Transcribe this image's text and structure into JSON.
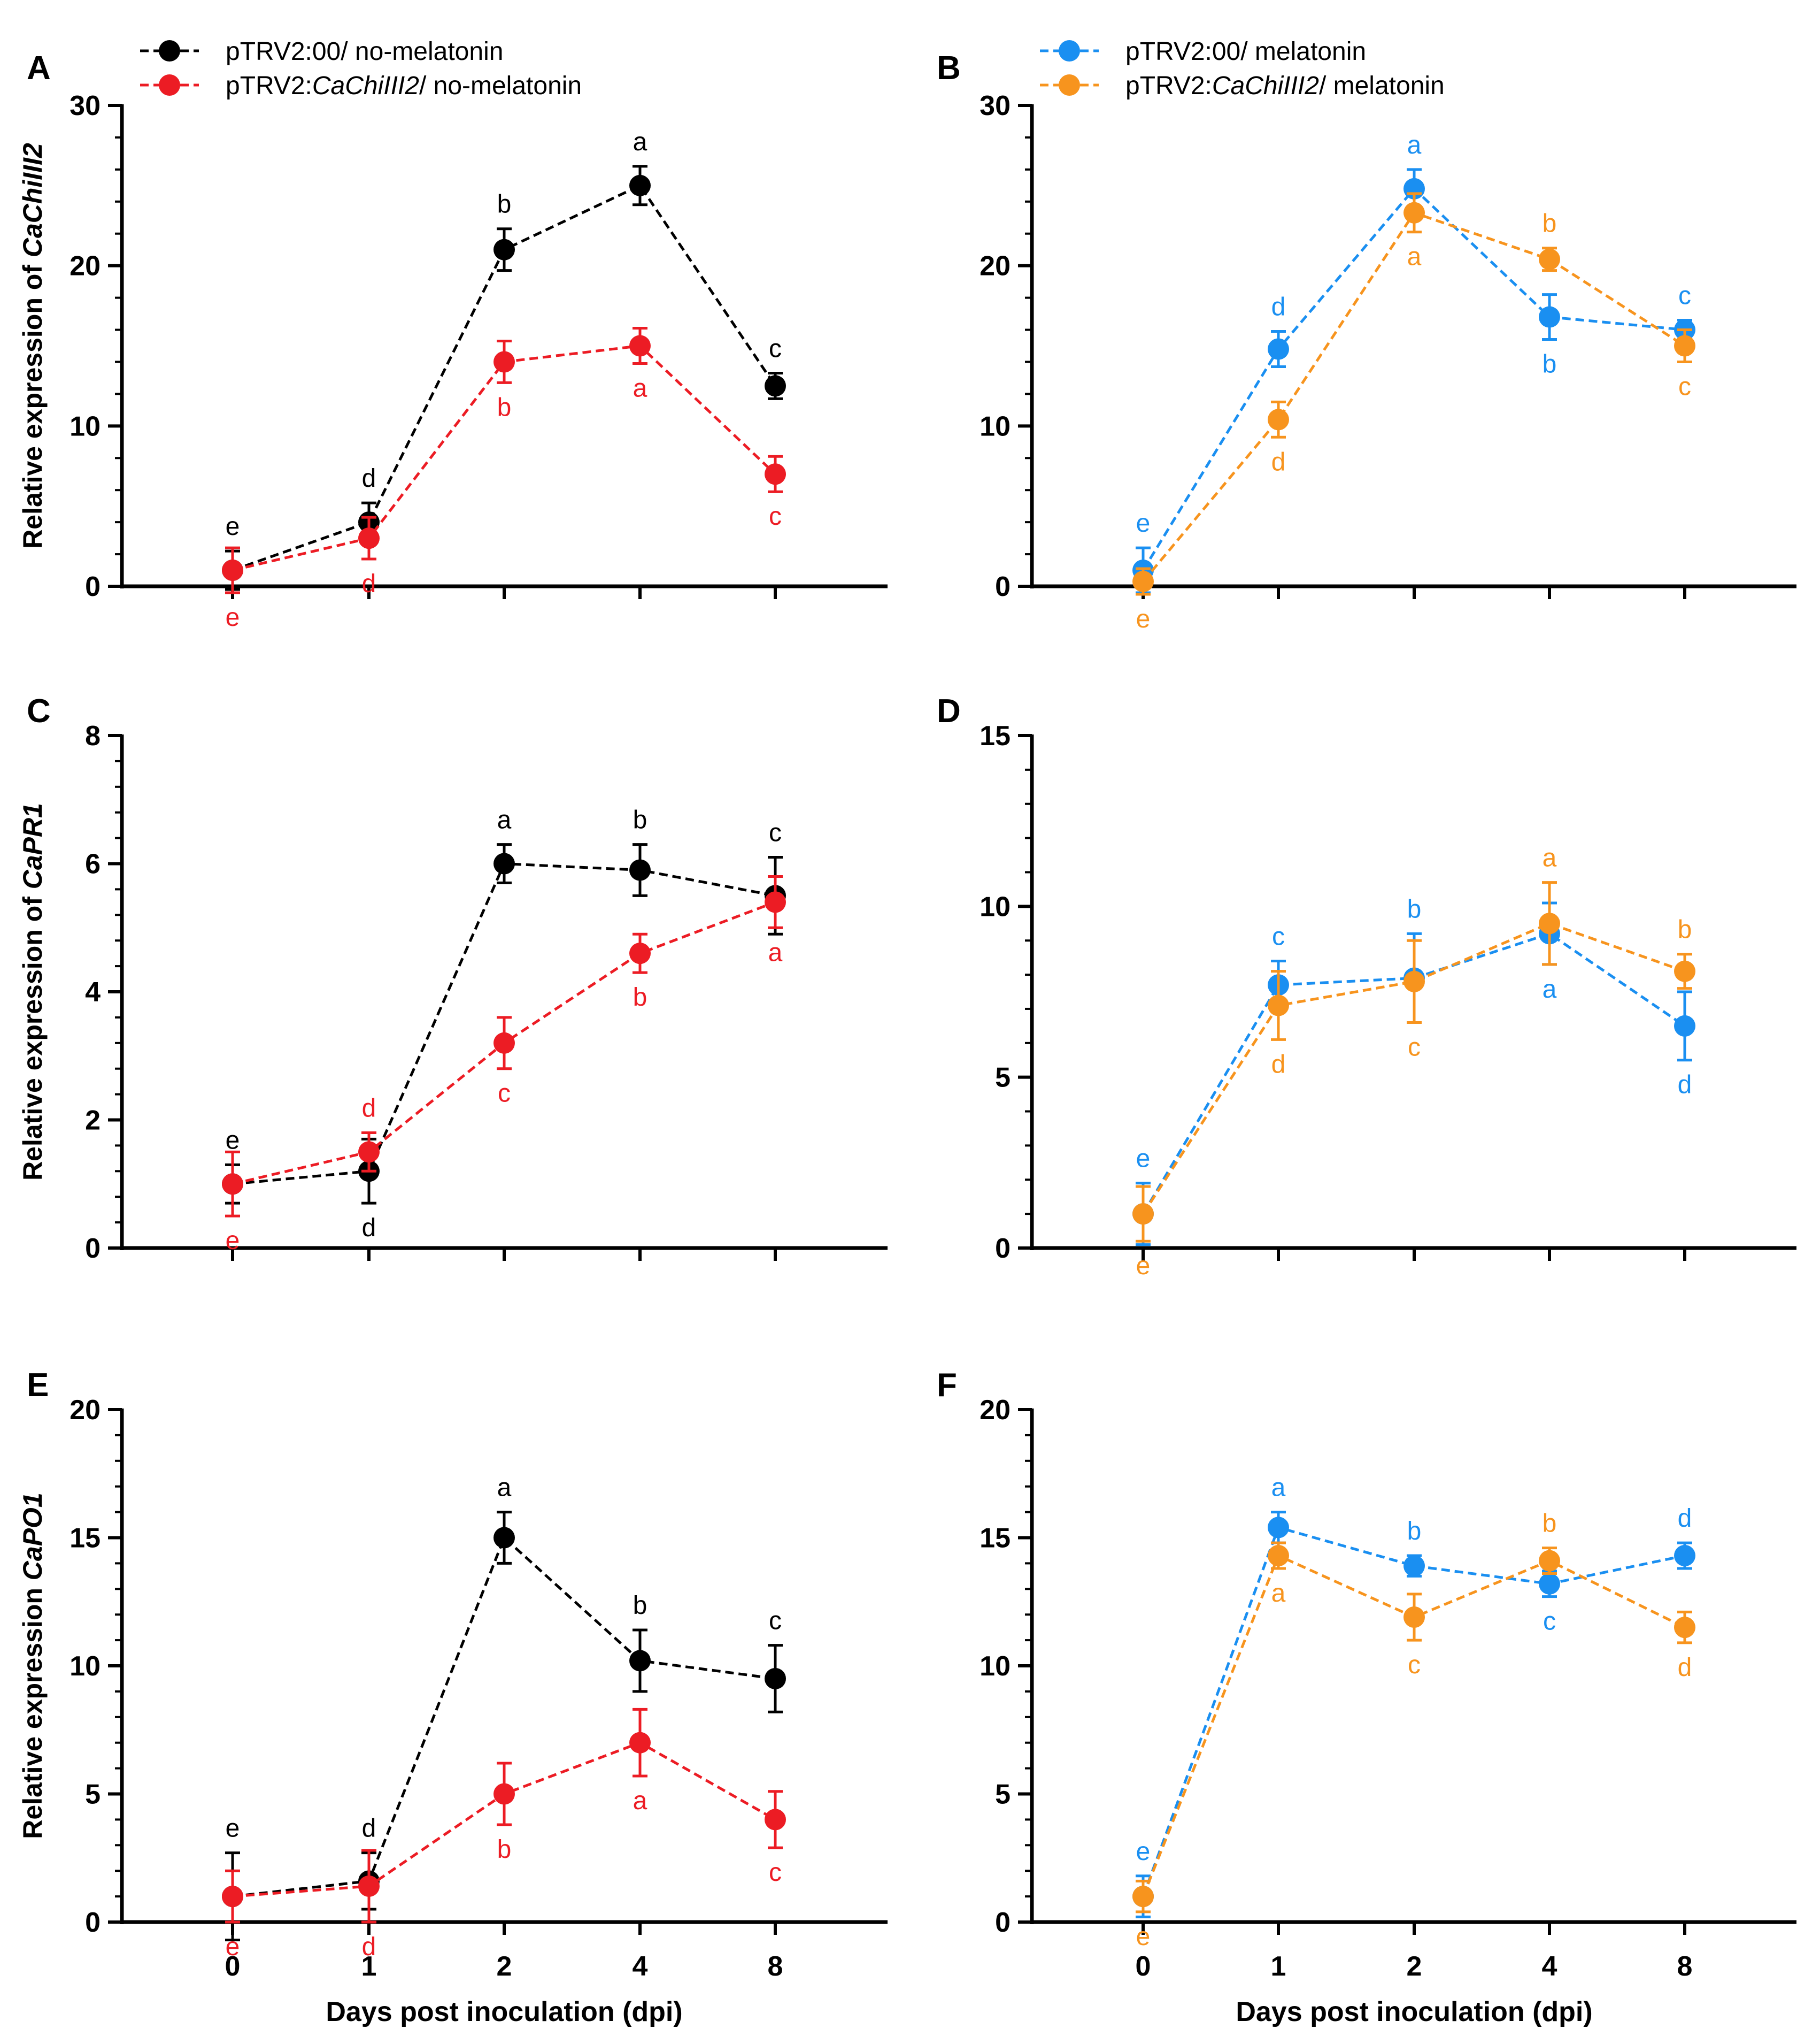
{
  "figure": {
    "xlabel": "Days post inoculation (dpi)"
  },
  "colors": {
    "black": "#000000",
    "red": "#ec1c24",
    "blue": "#1a8ff1",
    "orange": "#f7941e"
  },
  "legends": {
    "left": [
      {
        "label_pre": "pTRV2:00/ no-melatonin",
        "label_italic": "",
        "label_post": "",
        "color": "#000000"
      },
      {
        "label_pre": "pTRV2:",
        "label_italic": "CaChiIII2",
        "label_post": "/ no-melatonin",
        "color": "#ec1c24"
      }
    ],
    "right": [
      {
        "label_pre": "pTRV2:00/ melatonin",
        "label_italic": "",
        "label_post": "",
        "color": "#1a8ff1"
      },
      {
        "label_pre": "pTRV2:",
        "label_italic": "CaChiIII2",
        "label_post": "/ melatonin",
        "color": "#f7941e"
      }
    ]
  },
  "chart_data": [
    {
      "panel": "A",
      "type": "line",
      "ylabel_pre": "Relative expression of ",
      "ylabel_gene": "CaChiIII2",
      "ylim": [
        0,
        30
      ],
      "ytick_step": 10,
      "categories": [
        "0",
        "1",
        "2",
        "4",
        "8"
      ],
      "baseline_dotted": true,
      "series": [
        {
          "name": "pTRV2:00/ no-melatonin",
          "color": "#000000",
          "values": [
            1,
            4,
            21,
            25,
            12.5
          ],
          "errors": [
            1.2,
            1.2,
            1.3,
            1.2,
            0.8
          ],
          "letters": [
            "e",
            "d",
            "b",
            "a",
            "c"
          ]
        },
        {
          "name": "pTRV2:CaChiIII2/ no-melatonin",
          "color": "#ec1c24",
          "values": [
            1,
            3,
            14,
            15,
            7
          ],
          "errors": [
            1.4,
            1.3,
            1.3,
            1.1,
            1.1
          ],
          "letters": [
            "e",
            "d",
            "b",
            "a",
            "c"
          ]
        }
      ]
    },
    {
      "panel": "B",
      "type": "line",
      "ylabel_pre": "",
      "ylabel_gene": "",
      "ylim": [
        0,
        30
      ],
      "ytick_step": 10,
      "categories": [
        "0",
        "1",
        "2",
        "4",
        "8"
      ],
      "baseline_dotted": true,
      "series": [
        {
          "name": "pTRV2:00/ melatonin",
          "color": "#1a8ff1",
          "values": [
            1,
            14.8,
            24.8,
            16.8,
            16
          ],
          "errors": [
            1.4,
            1.1,
            1.2,
            1.4,
            0.6
          ],
          "letters": [
            "e",
            "d",
            "a",
            "b",
            "c"
          ]
        },
        {
          "name": "pTRV2:CaChiIII2/ melatonin",
          "color": "#f7941e",
          "values": [
            0.3,
            10.4,
            23.3,
            20.4,
            15
          ],
          "errors": [
            0.8,
            1.1,
            1.2,
            0.7,
            1.0
          ],
          "letters": [
            "e",
            "d",
            "a",
            "b",
            "c"
          ]
        }
      ]
    },
    {
      "panel": "C",
      "type": "line",
      "ylabel_pre": "Relative expression of ",
      "ylabel_gene": "CaPR1",
      "ylim": [
        0,
        8
      ],
      "ytick_step": 2,
      "categories": [
        "0",
        "1",
        "2",
        "4",
        "8"
      ],
      "baseline_dotted": false,
      "series": [
        {
          "name": "pTRV2:00/ no-melatonin",
          "color": "#000000",
          "values": [
            1,
            1.2,
            6,
            5.9,
            5.5
          ],
          "errors": [
            0.3,
            0.5,
            0.3,
            0.4,
            0.6
          ],
          "letters": [
            "e",
            "d",
            "a",
            "b",
            "c"
          ]
        },
        {
          "name": "pTRV2:CaChiIII2/ no-melatonin",
          "color": "#ec1c24",
          "values": [
            1,
            1.5,
            3.2,
            4.6,
            5.4
          ],
          "errors": [
            0.5,
            0.3,
            0.4,
            0.3,
            0.4
          ],
          "letters": [
            "e",
            "d",
            "c",
            "b",
            "a"
          ]
        }
      ]
    },
    {
      "panel": "D",
      "type": "line",
      "ylabel_pre": "",
      "ylabel_gene": "",
      "ylim": [
        0,
        15
      ],
      "ytick_step": 5,
      "categories": [
        "0",
        "1",
        "2",
        "4",
        "8"
      ],
      "baseline_dotted": true,
      "series": [
        {
          "name": "pTRV2:00/ melatonin",
          "color": "#1a8ff1",
          "values": [
            1,
            7.7,
            7.9,
            9.2,
            6.5
          ],
          "errors": [
            0.9,
            0.7,
            1.3,
            0.9,
            1.0
          ],
          "letters": [
            "e",
            "c",
            "b",
            "a",
            "d"
          ]
        },
        {
          "name": "pTRV2:CaChiIII2/ melatonin",
          "color": "#f7941e",
          "values": [
            1,
            7.1,
            7.8,
            9.5,
            8.1
          ],
          "errors": [
            0.8,
            1.0,
            1.2,
            1.2,
            0.5
          ],
          "letters": [
            "e",
            "d",
            "c",
            "a",
            "b"
          ]
        }
      ]
    },
    {
      "panel": "E",
      "type": "line",
      "ylabel_pre": "Relative expression ",
      "ylabel_gene": "CaPO1",
      "ylim": [
        0,
        20
      ],
      "ytick_step": 5,
      "categories": [
        "0",
        "1",
        "2",
        "4",
        "8"
      ],
      "baseline_dotted": true,
      "series": [
        {
          "name": "pTRV2:00/ no-melatonin",
          "color": "#000000",
          "values": [
            1,
            1.6,
            15,
            10.2,
            9.5
          ],
          "errors": [
            1.7,
            1.1,
            1.0,
            1.2,
            1.3
          ],
          "letters": [
            "e",
            "d",
            "a",
            "b",
            "c"
          ]
        },
        {
          "name": "pTRV2:CaChiIII2/ no-melatonin",
          "color": "#ec1c24",
          "values": [
            1,
            1.4,
            5,
            7,
            4
          ],
          "errors": [
            1.0,
            1.4,
            1.2,
            1.3,
            1.1
          ],
          "letters": [
            "e",
            "d",
            "b",
            "a",
            "c"
          ]
        }
      ]
    },
    {
      "panel": "F",
      "type": "line",
      "ylabel_pre": "",
      "ylabel_gene": "",
      "ylim": [
        0,
        20
      ],
      "ytick_step": 5,
      "categories": [
        "0",
        "1",
        "2",
        "4",
        "8"
      ],
      "baseline_dotted": false,
      "series": [
        {
          "name": "pTRV2:00/ melatonin",
          "color": "#1a8ff1",
          "values": [
            1,
            15.4,
            13.9,
            13.2,
            14.3
          ],
          "errors": [
            0.8,
            0.6,
            0.4,
            0.5,
            0.5
          ],
          "letters": [
            "e",
            "a",
            "b",
            "c",
            "d"
          ]
        },
        {
          "name": "pTRV2:CaChiIII2/ melatonin",
          "color": "#f7941e",
          "values": [
            1,
            14.3,
            11.9,
            14.1,
            11.5
          ],
          "errors": [
            0.6,
            0.5,
            0.9,
            0.5,
            0.6
          ],
          "letters": [
            "e",
            "a",
            "c",
            "b",
            "d"
          ]
        }
      ]
    }
  ]
}
